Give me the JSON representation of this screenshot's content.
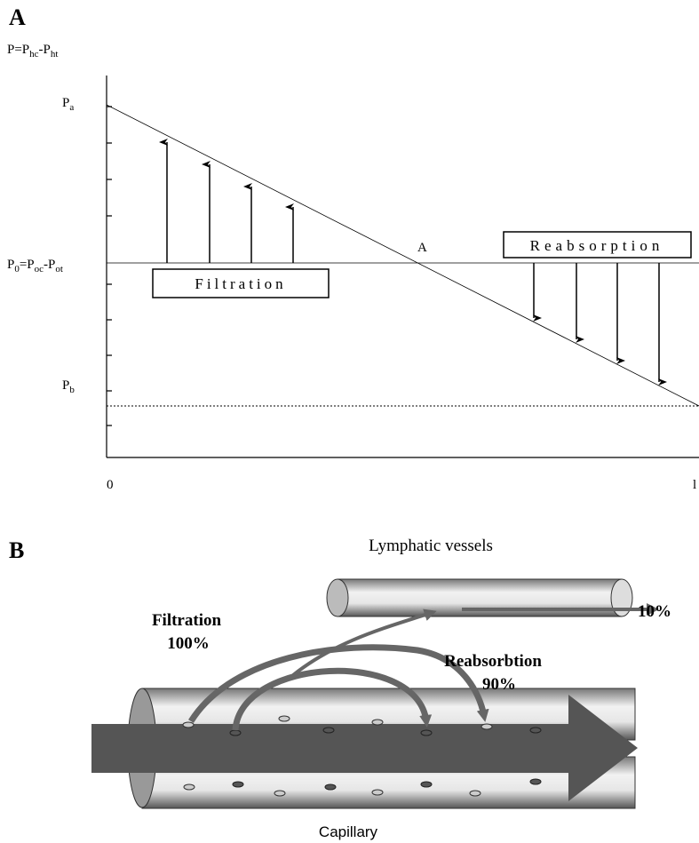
{
  "panel_a": {
    "label": "A",
    "y_axis_label": [
      "P=P",
      "hc",
      "-P",
      "ht"
    ],
    "tick_labels": {
      "pa": [
        "P",
        "a"
      ],
      "p0": [
        "P",
        "0",
        "=P",
        "oc",
        "-P",
        "ot"
      ],
      "pb": [
        "P",
        "b"
      ]
    },
    "x_labels": [
      "0",
      "l"
    ],
    "crossing_label": "A",
    "filtration": "Filtration",
    "reabsorption": "Reabsorption"
  },
  "panel_b": {
    "label": "B",
    "lymphatic": "Lymphatic vessels",
    "lymph_percent": "10%",
    "filtration": "Filtration",
    "filtration_percent": "100%",
    "reabsorption": "Reabsorbtion",
    "reabsorption_percent": "90%",
    "capillary": "Capillary"
  }
}
